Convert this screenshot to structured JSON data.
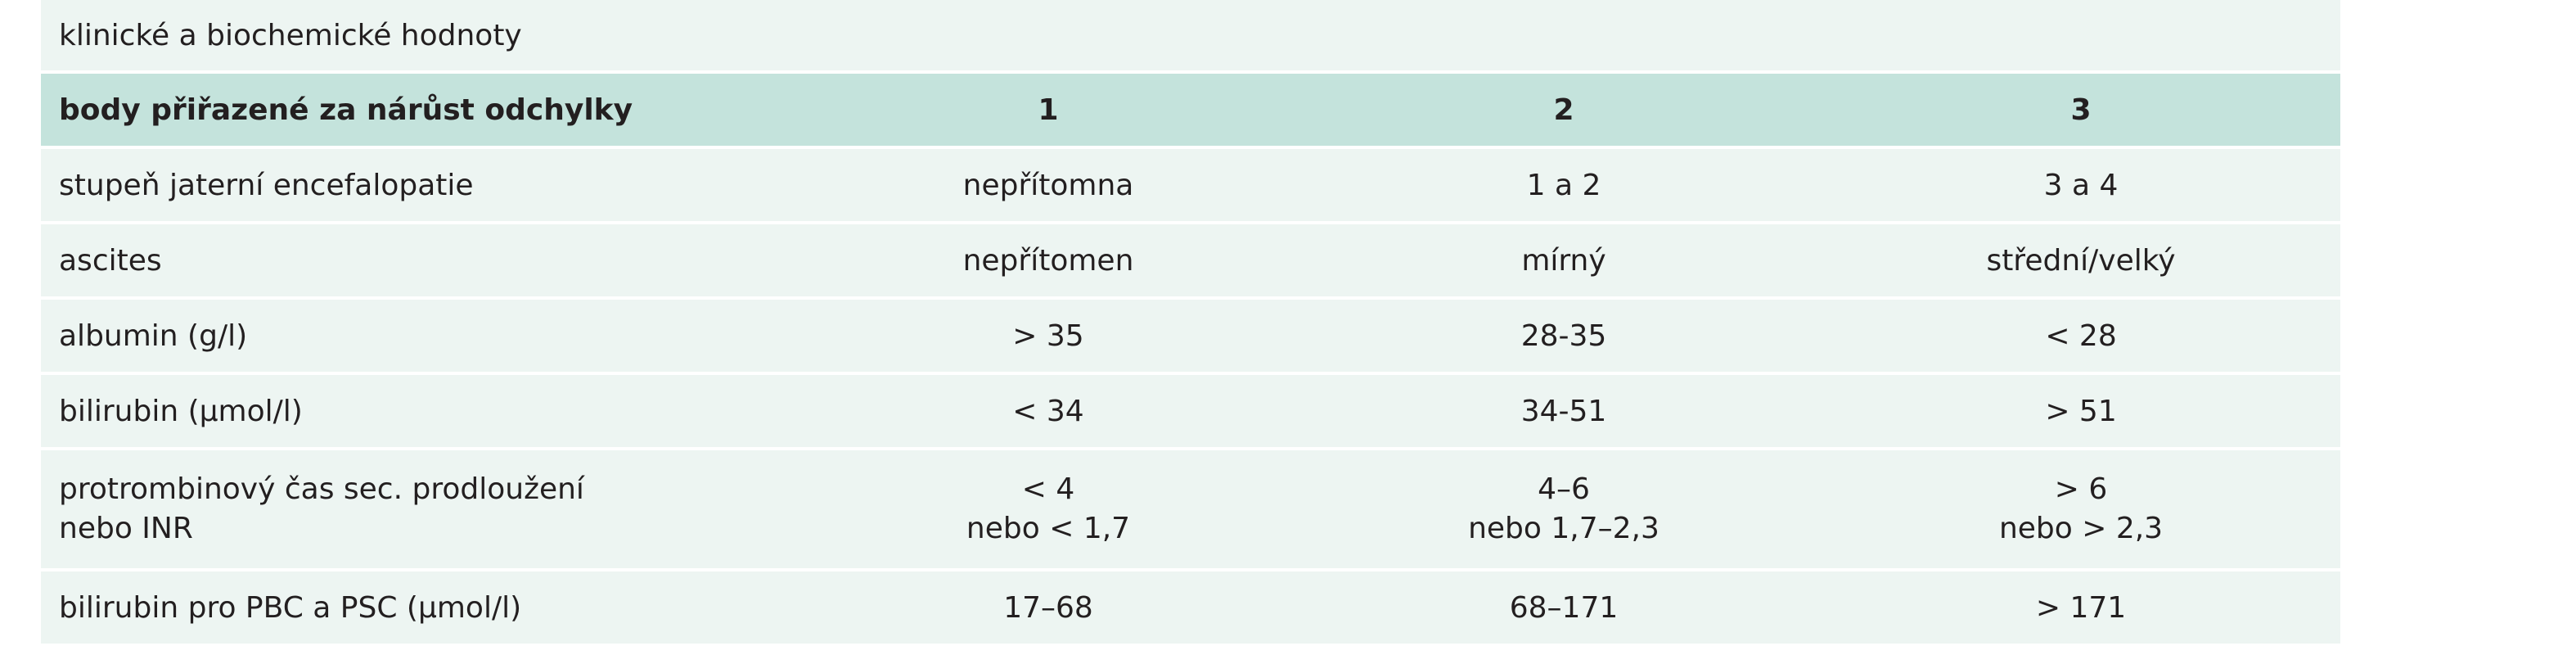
{
  "table": {
    "caption": "klinické a biochemické hodnoty",
    "header": [
      "body přiřazené za nárůst odchylky",
      "1",
      "2",
      "3"
    ],
    "rows": [
      [
        "stupeň jaterní encefalopatie",
        "nepřítomna",
        "1 a 2",
        "3 a 4"
      ],
      [
        "ascites",
        "nepřítomen",
        "mírný",
        "střední/velký"
      ],
      [
        "albumin (g/l)",
        "> 35",
        "28-35",
        "< 28"
      ],
      [
        "bilirubin (μmol/l)",
        "< 34",
        "34-51",
        "> 51"
      ],
      [
        "protrombinový čas sec. prodloužení\nnebo INR",
        "< 4\nnebo < 1,7",
        "4–6\nnebo 1,7–2,3",
        "> 6\nnebo > 2,3"
      ],
      [
        "bilirubin pro PBC a PSC (μmol/l)",
        "17–68",
        "68–171",
        "> 171"
      ]
    ]
  }
}
